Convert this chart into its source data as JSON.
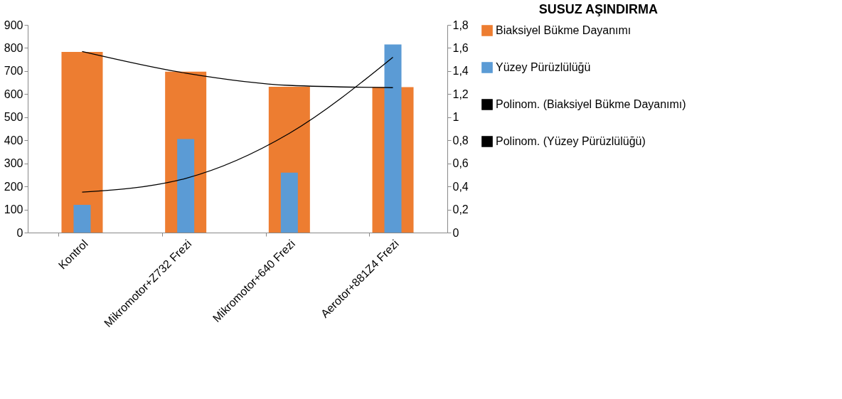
{
  "chart_data": {
    "type": "bar",
    "title": "SUSUZ AŞINDIRMA",
    "categories": [
      "Kontrol",
      "Mikromotor+Z732 Frezi",
      "Mikromotor+640 Frezi",
      "Aerotor+881Z4 Frezi"
    ],
    "series": [
      {
        "name": "Biaksiyel Bükme Dayanımı",
        "color": "#ed7d31",
        "values": [
          783,
          697,
          632,
          630
        ]
      },
      {
        "name": "Yüzey Pürüzlülüğü",
        "color": "#5b9bd5",
        "values": [
          0.24,
          0.81,
          0.52,
          1.63
        ],
        "axis": "y2"
      },
      {
        "name": "Polinom. (Biaksiyel Bükme Dayanımı)",
        "type": "line",
        "color": "#000000",
        "values": [
          785,
          691,
          638,
          628
        ]
      },
      {
        "name": "Polinom. (Yüzey Pürüzlülüğü)",
        "type": "line",
        "color": "#000000",
        "values": [
          0.35,
          0.47,
          0.86,
          1.52
        ],
        "axis": "y2"
      }
    ],
    "ylim": [
      0,
      900
    ],
    "yticks": [
      0,
      100,
      200,
      300,
      400,
      500,
      600,
      700,
      800,
      900
    ],
    "y2lim": [
      0,
      1.8
    ],
    "y2ticks": [
      0,
      {
        "value": 0.2,
        "label": "0,2"
      },
      {
        "value": 0.4,
        "label": "0,4"
      },
      {
        "value": 0.6,
        "label": "0,6"
      },
      {
        "value": 0.8,
        "label": "0,8"
      },
      1,
      {
        "value": 1.2,
        "label": "1,2"
      },
      {
        "value": 1.4,
        "label": "1,4"
      },
      {
        "value": 1.6,
        "label": "1,6"
      },
      {
        "value": 1.8,
        "label": "1,8"
      }
    ],
    "grid": false,
    "legend": "right"
  }
}
